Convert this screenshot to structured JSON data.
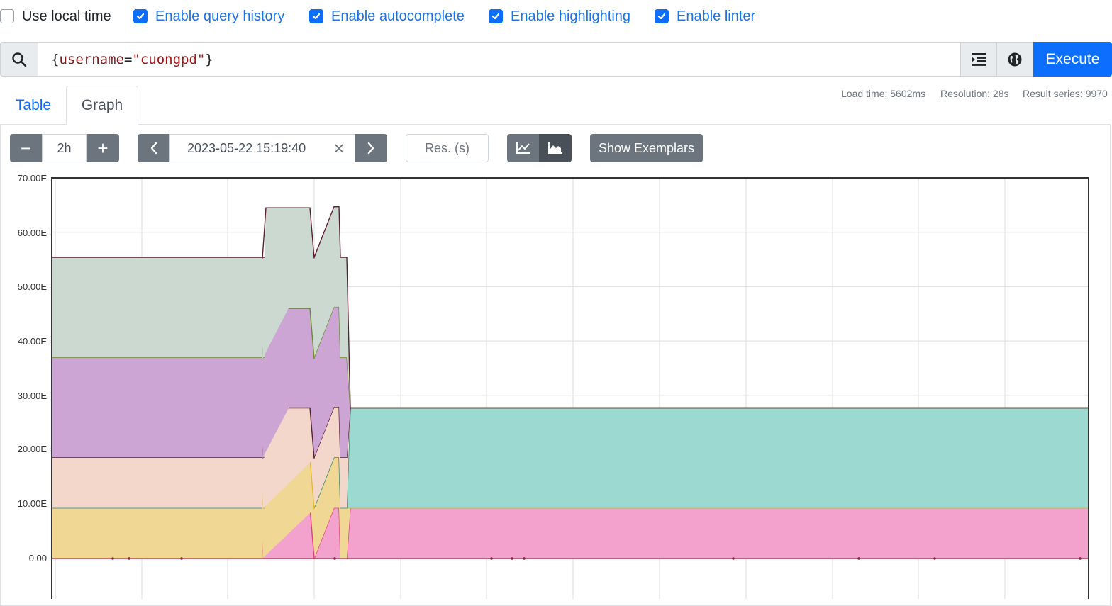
{
  "options": {
    "use_local_time": {
      "label": "Use local time",
      "checked": false
    },
    "query_history": {
      "label": "Enable query history",
      "checked": true
    },
    "autocomplete": {
      "label": "Enable autocomplete",
      "checked": true
    },
    "highlighting": {
      "label": "Enable highlighting",
      "checked": true
    },
    "linter": {
      "label": "Enable linter",
      "checked": true
    }
  },
  "query": {
    "open_brace": "{",
    "label_name": "username",
    "equals": "=",
    "label_value": "\"cuongpd\"",
    "close_brace": "}"
  },
  "toolbar": {
    "execute_label": "Execute",
    "format_icon": "format-indent-icon",
    "explorer_icon": "globe-icon",
    "search_icon": "search-icon"
  },
  "tabs": {
    "table": "Table",
    "graph": "Graph",
    "active": "Graph"
  },
  "stats": {
    "load_time": "Load time: 5602ms",
    "resolution": "Resolution: 28s",
    "result_series": "Result series: 9970"
  },
  "graph_controls": {
    "minus": "−",
    "range": "2h",
    "plus": "+",
    "prev": "‹",
    "end_time": "2023-05-22 15:19:40",
    "clear": "×",
    "next": "›",
    "res_placeholder": "Res. (s)",
    "exemplars_label": "Show Exemplars",
    "stacked_mode": true
  },
  "chart_data": {
    "type": "area",
    "stacked": true,
    "title": "",
    "xlabel": "",
    "ylabel": "",
    "yticks": [
      "0.00",
      "10.00E",
      "20.00E",
      "30.00E",
      "40.00E",
      "50.00E",
      "60.00E",
      "70.00E"
    ],
    "ylim": [
      -8,
      70
    ],
    "grid": true,
    "x": [
      0,
      1,
      2,
      3,
      4,
      5,
      6,
      7,
      8,
      9,
      10,
      11,
      12,
      13
    ],
    "series": [
      {
        "color": "#f2a2cc",
        "stroke": "#e0407a",
        "values": [
          0,
          0,
          0,
          0,
          0,
          9.3,
          9.3,
          0,
          0,
          9.3,
          9.3,
          9.3,
          9.3,
          9.3
        ]
      },
      {
        "color": "#f0d794",
        "stroke": "#e8b830",
        "values": [
          9.3,
          9.3,
          9.3,
          9.3,
          9.3,
          9.3,
          9.3,
          9.3,
          9.3,
          0,
          0,
          0,
          0,
          0
        ]
      },
      {
        "color": "#9bd9d1",
        "stroke": "#2e8a70",
        "values": [
          0,
          0,
          0,
          0,
          0,
          0,
          0,
          0,
          0,
          18.4,
          18.4,
          18.4,
          18.4,
          18.4
        ]
      },
      {
        "color": "#f2d7ca",
        "stroke": "#5a2030",
        "values": [
          9.3,
          9.3,
          9.3,
          9.3,
          9.3,
          9.3,
          9.3,
          9.3,
          9.3,
          0,
          0,
          0,
          0,
          0
        ]
      },
      {
        "color": "#cca5d4",
        "stroke": "#6a8a30",
        "values": [
          18.4,
          18.4,
          18.4,
          18.4,
          18.4,
          18.4,
          18.4,
          18.4,
          18.4,
          0,
          0,
          0,
          0,
          0
        ]
      },
      {
        "color": "#cbd9d1",
        "stroke": "#5a2030",
        "values": [
          18.4,
          18.4,
          18.4,
          18.4,
          18.4,
          18.4,
          18.4,
          18.4,
          18.4,
          0,
          0,
          0,
          0,
          0
        ]
      }
    ]
  },
  "colors": {
    "primary": "#0d6efd",
    "secondary": "#6c757d",
    "secondary_dark": "#495057"
  }
}
